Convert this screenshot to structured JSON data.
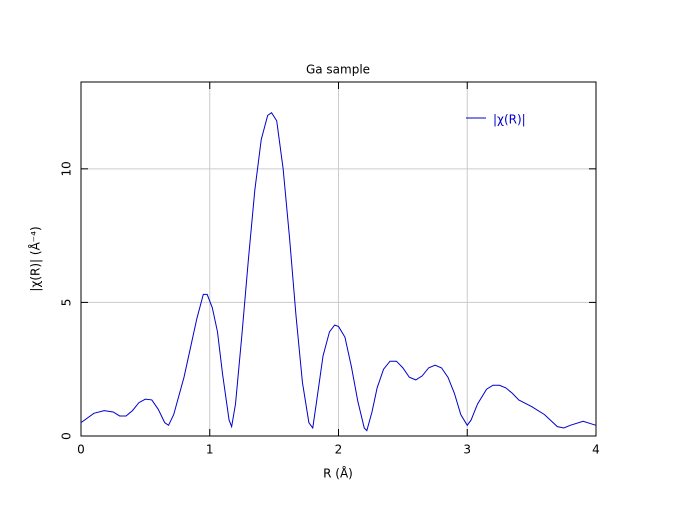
{
  "chart_data": {
    "type": "line",
    "title": "Ga sample",
    "x_label": "R (Å)",
    "y_label": "|χ(R)| (Å⁻⁴)",
    "x": [
      0,
      0.1,
      0.18,
      0.25,
      0.3,
      0.35,
      0.4,
      0.45,
      0.5,
      0.55,
      0.6,
      0.65,
      0.68,
      0.72,
      0.8,
      0.85,
      0.9,
      0.95,
      0.98,
      1.02,
      1.06,
      1.1,
      1.15,
      1.17,
      1.2,
      1.25,
      1.3,
      1.35,
      1.4,
      1.45,
      1.48,
      1.52,
      1.57,
      1.62,
      1.67,
      1.72,
      1.77,
      1.8,
      1.83,
      1.88,
      1.93,
      1.97,
      2.0,
      2.05,
      2.1,
      2.15,
      2.2,
      2.22,
      2.26,
      2.3,
      2.35,
      2.4,
      2.45,
      2.5,
      2.55,
      2.6,
      2.65,
      2.7,
      2.75,
      2.8,
      2.85,
      2.9,
      2.95,
      3.0,
      3.03,
      3.08,
      3.15,
      3.2,
      3.25,
      3.3,
      3.35,
      3.4,
      3.5,
      3.6,
      3.7,
      3.75,
      3.8,
      3.9,
      4.0
    ],
    "series": [
      {
        "name": "|χ(R)|",
        "color": "#0000cc",
        "values": [
          0.5,
          0.85,
          0.95,
          0.9,
          0.75,
          0.75,
          0.95,
          1.25,
          1.38,
          1.35,
          1.0,
          0.5,
          0.4,
          0.8,
          2.2,
          3.3,
          4.4,
          5.3,
          5.3,
          4.8,
          3.9,
          2.3,
          0.6,
          0.35,
          1.2,
          3.8,
          6.6,
          9.2,
          11.1,
          12.0,
          12.1,
          11.8,
          10.0,
          7.4,
          4.5,
          2.0,
          0.5,
          0.3,
          1.3,
          3.0,
          3.9,
          4.15,
          4.1,
          3.7,
          2.6,
          1.3,
          0.3,
          0.2,
          0.9,
          1.8,
          2.5,
          2.8,
          2.8,
          2.55,
          2.2,
          2.1,
          2.25,
          2.55,
          2.65,
          2.55,
          2.2,
          1.6,
          0.8,
          0.4,
          0.6,
          1.2,
          1.75,
          1.9,
          1.9,
          1.8,
          1.6,
          1.35,
          1.1,
          0.8,
          0.35,
          0.3,
          0.4,
          0.55,
          0.4
        ]
      }
    ],
    "xlim": [
      0,
      4
    ],
    "ylim": [
      0,
      13.25
    ],
    "xticks": [
      0,
      1,
      2,
      3,
      4
    ],
    "yticks": [
      0,
      5,
      10
    ],
    "grid": true,
    "legend": "upper right"
  }
}
